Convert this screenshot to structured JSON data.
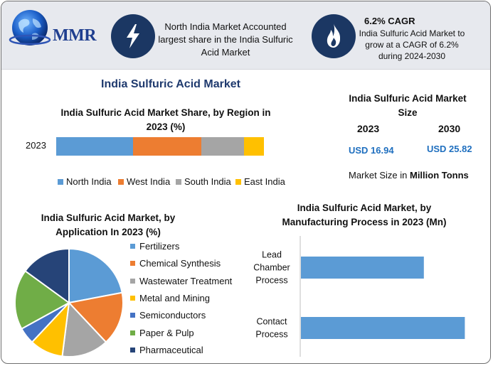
{
  "header": {
    "logo_text": "MMR",
    "region_note": "North India Market Accounted largest share in the India Sulfuric Acid Market",
    "cagr_title": "6.2% CAGR",
    "cagr_text": "India Sulfuric Acid Market to grow at a CAGR of 6.2% during 2024-2030",
    "bolt_icon": "lightning-bolt-icon",
    "flame_icon": "flame-icon"
  },
  "main_title": "India Sulfuric Acid Market",
  "size_panel": {
    "title": "India Sulfuric Acid Market Size",
    "years": [
      "2023",
      "2030"
    ],
    "values": [
      "USD 16.94",
      "USD 25.82"
    ],
    "unit_note_prefix": "Market Size in ",
    "unit_note_bold": "Million Tonns"
  },
  "colors": {
    "blue": "#5b9bd5",
    "orange": "#ed7d31",
    "gray": "#a5a5a5",
    "yellow": "#ffc000",
    "darkblue": "#4472c4",
    "green": "#70ad47",
    "navy": "#264478",
    "header_icon_bg": "#1b3763"
  },
  "chart_data": [
    {
      "type": "bar",
      "orientation": "horizontal-stacked-percent",
      "title": "India Sulfuric Acid Market Share, by Region in 2023 (%)",
      "categories": [
        "2023"
      ],
      "legend_position": "bottom",
      "series": [
        {
          "name": "North India",
          "values": [
            36
          ]
        },
        {
          "name": "West India",
          "values": [
            32
          ]
        },
        {
          "name": "South India",
          "values": [
            20
          ]
        },
        {
          "name": "East India",
          "values": [
            12
          ]
        }
      ]
    },
    {
      "type": "pie",
      "title": "India Sulfuric Acid Market, by Application In 2023 (%)",
      "legend_position": "right",
      "labels": [
        "Fertilizers",
        "Chemical Synthesis",
        "Wastewater Treatment",
        "Metal and Mining",
        "Semiconductors",
        "Paper & Pulp",
        "Pharmaceutical"
      ],
      "values": [
        22,
        16,
        14,
        10,
        5,
        18,
        15
      ]
    },
    {
      "type": "bar",
      "orientation": "horizontal",
      "title": "India Sulfuric Acid Market, by Manufacturing Process in 2023 (Mn)",
      "categories": [
        "Lead Chamber Process",
        "Contact Process"
      ],
      "category_lines": [
        [
          "Lead",
          "Chamber",
          "Process"
        ],
        [
          "Contact",
          "Process"
        ]
      ],
      "values": [
        7.2,
        9.6
      ],
      "xlim": [
        0,
        10
      ]
    }
  ]
}
